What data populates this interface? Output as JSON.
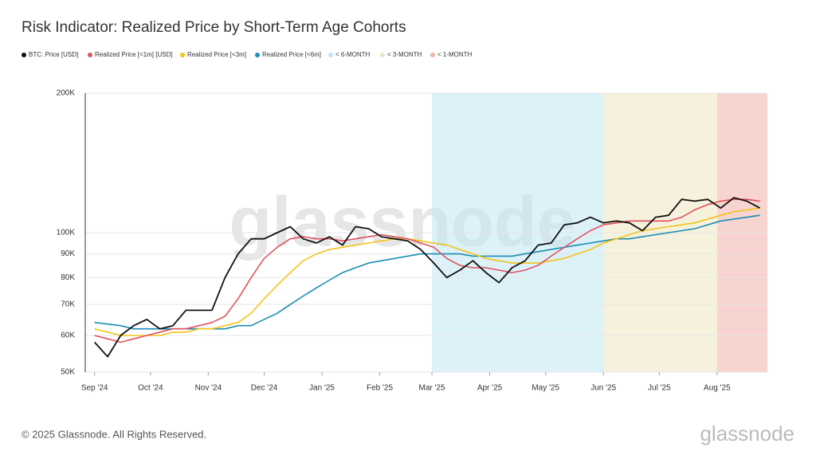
{
  "title": "Risk Indicator: Realized Price by Short-Term Age Cohorts",
  "watermark": "glassnode",
  "footer": "© 2025 Glassnode. All Rights Reserved.",
  "logo": "glassnode",
  "chart_data": {
    "type": "line",
    "x": [
      0,
      7,
      14,
      21,
      28,
      35,
      42,
      49,
      56,
      63,
      70,
      77,
      84,
      91,
      98,
      105,
      112,
      119,
      126,
      133,
      140,
      147,
      154,
      161,
      168,
      175,
      182,
      189,
      196,
      203,
      210,
      217,
      224,
      231,
      238,
      245,
      252,
      259,
      266,
      273,
      280,
      287,
      294,
      301,
      308,
      315,
      322,
      329,
      336,
      343,
      350,
      357
    ],
    "xlim": [
      -5,
      361
    ],
    "xticks": [
      {
        "value": 0,
        "label": "Sep '24"
      },
      {
        "value": 30,
        "label": "Oct '24"
      },
      {
        "value": 61,
        "label": "Nov '24"
      },
      {
        "value": 91,
        "label": "Dec '24"
      },
      {
        "value": 122,
        "label": "Jan '25"
      },
      {
        "value": 153,
        "label": "Feb '25"
      },
      {
        "value": 181,
        "label": "Mar '25"
      },
      {
        "value": 212,
        "label": "Apr '25"
      },
      {
        "value": 242,
        "label": "May '25"
      },
      {
        "value": 273,
        "label": "Jun '25"
      },
      {
        "value": 303,
        "label": "Jul '25"
      },
      {
        "value": 334,
        "label": "Aug '25"
      }
    ],
    "ylim": [
      50000,
      200000
    ],
    "yticks": [
      {
        "value": 50000,
        "label": "50K"
      },
      {
        "value": 60000,
        "label": "60K"
      },
      {
        "value": 70000,
        "label": "70K"
      },
      {
        "value": 80000,
        "label": "80K"
      },
      {
        "value": 90000,
        "label": "90K"
      },
      {
        "value": 100000,
        "label": "100K"
      },
      {
        "value": 200000,
        "label": "200K"
      }
    ],
    "log_scale": true,
    "grid": true,
    "series": [
      {
        "name": "BTC: Price [USD]",
        "color": "#111111",
        "values": [
          58000,
          54000,
          60000,
          63000,
          65000,
          62000,
          63000,
          68000,
          68000,
          68000,
          80000,
          90000,
          97000,
          97000,
          100000,
          103000,
          97000,
          95000,
          98000,
          94000,
          103000,
          102000,
          98000,
          97000,
          96000,
          92000,
          86000,
          80000,
          83000,
          87000,
          82000,
          78000,
          84000,
          87000,
          94000,
          95000,
          104000,
          105000,
          108000,
          105000,
          106000,
          105000,
          101000,
          108000,
          109000,
          118000,
          117000,
          118000,
          113000,
          119000,
          117000,
          113000
        ]
      },
      {
        "name": "Realized Price [<1m] [USD]",
        "color": "#e0535f",
        "values": [
          60000,
          59000,
          58000,
          59000,
          60000,
          61000,
          62000,
          62000,
          63000,
          64000,
          66000,
          72000,
          80000,
          88000,
          93000,
          97000,
          98000,
          97000,
          97000,
          96000,
          97000,
          98000,
          99000,
          98000,
          97000,
          95000,
          93000,
          88000,
          85000,
          84000,
          84000,
          83000,
          82000,
          83000,
          85000,
          89000,
          93000,
          97000,
          101000,
          104000,
          105000,
          106000,
          106000,
          106000,
          106000,
          108000,
          112000,
          115000,
          117000,
          118000,
          118000,
          117000
        ]
      },
      {
        "name": "Realized Price [<3m]",
        "color": "#f2c318",
        "values": [
          62000,
          61000,
          60000,
          60000,
          60000,
          60000,
          61000,
          61000,
          62000,
          62000,
          63000,
          64000,
          67000,
          72000,
          77000,
          82000,
          87000,
          90000,
          92000,
          93000,
          94000,
          95000,
          96000,
          97000,
          97000,
          96000,
          95000,
          94000,
          92000,
          90000,
          88000,
          87000,
          86000,
          86000,
          86000,
          87000,
          88000,
          90000,
          92000,
          95000,
          97000,
          99000,
          101000,
          102000,
          103000,
          104000,
          105000,
          107000,
          109000,
          111000,
          112000,
          113000
        ]
      },
      {
        "name": "Realized Price [<6m]",
        "color": "#1b8db5",
        "values": [
          64000,
          63500,
          63000,
          62000,
          62000,
          62000,
          62000,
          62000,
          62000,
          62000,
          62000,
          63000,
          63000,
          65000,
          67000,
          70000,
          73000,
          76000,
          79000,
          82000,
          84000,
          86000,
          87000,
          88000,
          89000,
          90000,
          90000,
          90000,
          90000,
          89000,
          89000,
          89000,
          89000,
          90000,
          91000,
          92000,
          93000,
          94000,
          95000,
          96000,
          97000,
          97000,
          98000,
          99000,
          100000,
          101000,
          102000,
          104000,
          106000,
          107000,
          108000,
          109000
        ]
      }
    ],
    "bands": [
      {
        "name": "< 6-MONTH",
        "color": "#bfe6f2",
        "xrange": [
          181,
          273
        ]
      },
      {
        "name": "< 3-MONTH",
        "color": "#ece6c0",
        "xrange": [
          273,
          334
        ]
      },
      {
        "name": "< 1-MONTH",
        "color": "#f0b0a8",
        "xrange": [
          334,
          361
        ]
      }
    ]
  }
}
